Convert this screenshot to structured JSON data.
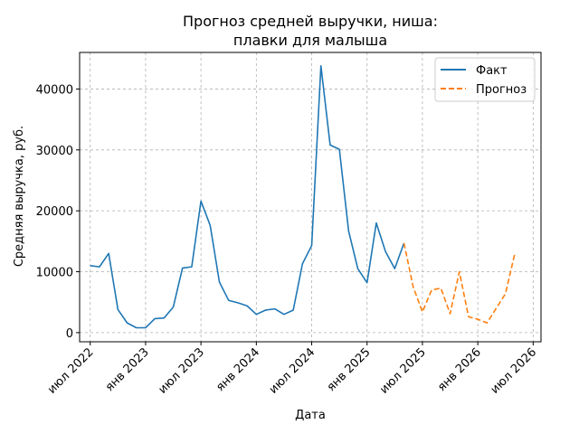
{
  "chart_data": {
    "type": "line",
    "title_lines": [
      "Прогноз средней выручки, ниша:",
      "плавки для малыша"
    ],
    "xlabel": "Дата",
    "ylabel": "Средняя выручка, руб.",
    "ylim": [
      -1500,
      46000
    ],
    "yticks": [
      0,
      10000,
      20000,
      30000,
      40000
    ],
    "xlim": [
      -1.15,
      48.85
    ],
    "xticks": [
      {
        "pos": 0,
        "label": "июл 2022"
      },
      {
        "pos": 6,
        "label": "янв 2023"
      },
      {
        "pos": 12,
        "label": "июл 2023"
      },
      {
        "pos": 18,
        "label": "янв 2024"
      },
      {
        "pos": 24,
        "label": "июл 2024"
      },
      {
        "pos": 30,
        "label": "янв 2025"
      },
      {
        "pos": 36,
        "label": "июл 2025"
      },
      {
        "pos": 42,
        "label": "янв 2026"
      },
      {
        "pos": 48,
        "label": "июл 2026"
      }
    ],
    "grid": true,
    "legend_position": "top-right",
    "series": [
      {
        "name": "Факт",
        "color": "#1f77b4",
        "style": "solid",
        "x": [
          0,
          1,
          2,
          3,
          4,
          5,
          6,
          7,
          8,
          9,
          10,
          11,
          12,
          13,
          14,
          15,
          16,
          17,
          18,
          19,
          20,
          21,
          22,
          23,
          24,
          25,
          26,
          27,
          28,
          29,
          30,
          31,
          32,
          33,
          34
        ],
        "values": [
          11000,
          10800,
          13000,
          3800,
          1600,
          800,
          800,
          2300,
          2400,
          4200,
          10600,
          10800,
          21600,
          17600,
          8300,
          5300,
          4900,
          4400,
          3000,
          3700,
          3900,
          3000,
          3700,
          11300,
          14300,
          43800,
          30800,
          30100,
          16700,
          10500,
          8200,
          18000,
          13300,
          10500,
          14700
        ]
      },
      {
        "name": "Прогноз",
        "color": "#ff7f0e",
        "style": "dashed",
        "x": [
          34,
          35,
          36,
          37,
          38,
          39,
          40,
          41,
          42,
          43,
          44,
          45,
          46
        ],
        "values": [
          14700,
          7500,
          3400,
          7000,
          7300,
          3100,
          10000,
          2600,
          2200,
          1600,
          4000,
          6400,
          12900
        ]
      }
    ]
  }
}
